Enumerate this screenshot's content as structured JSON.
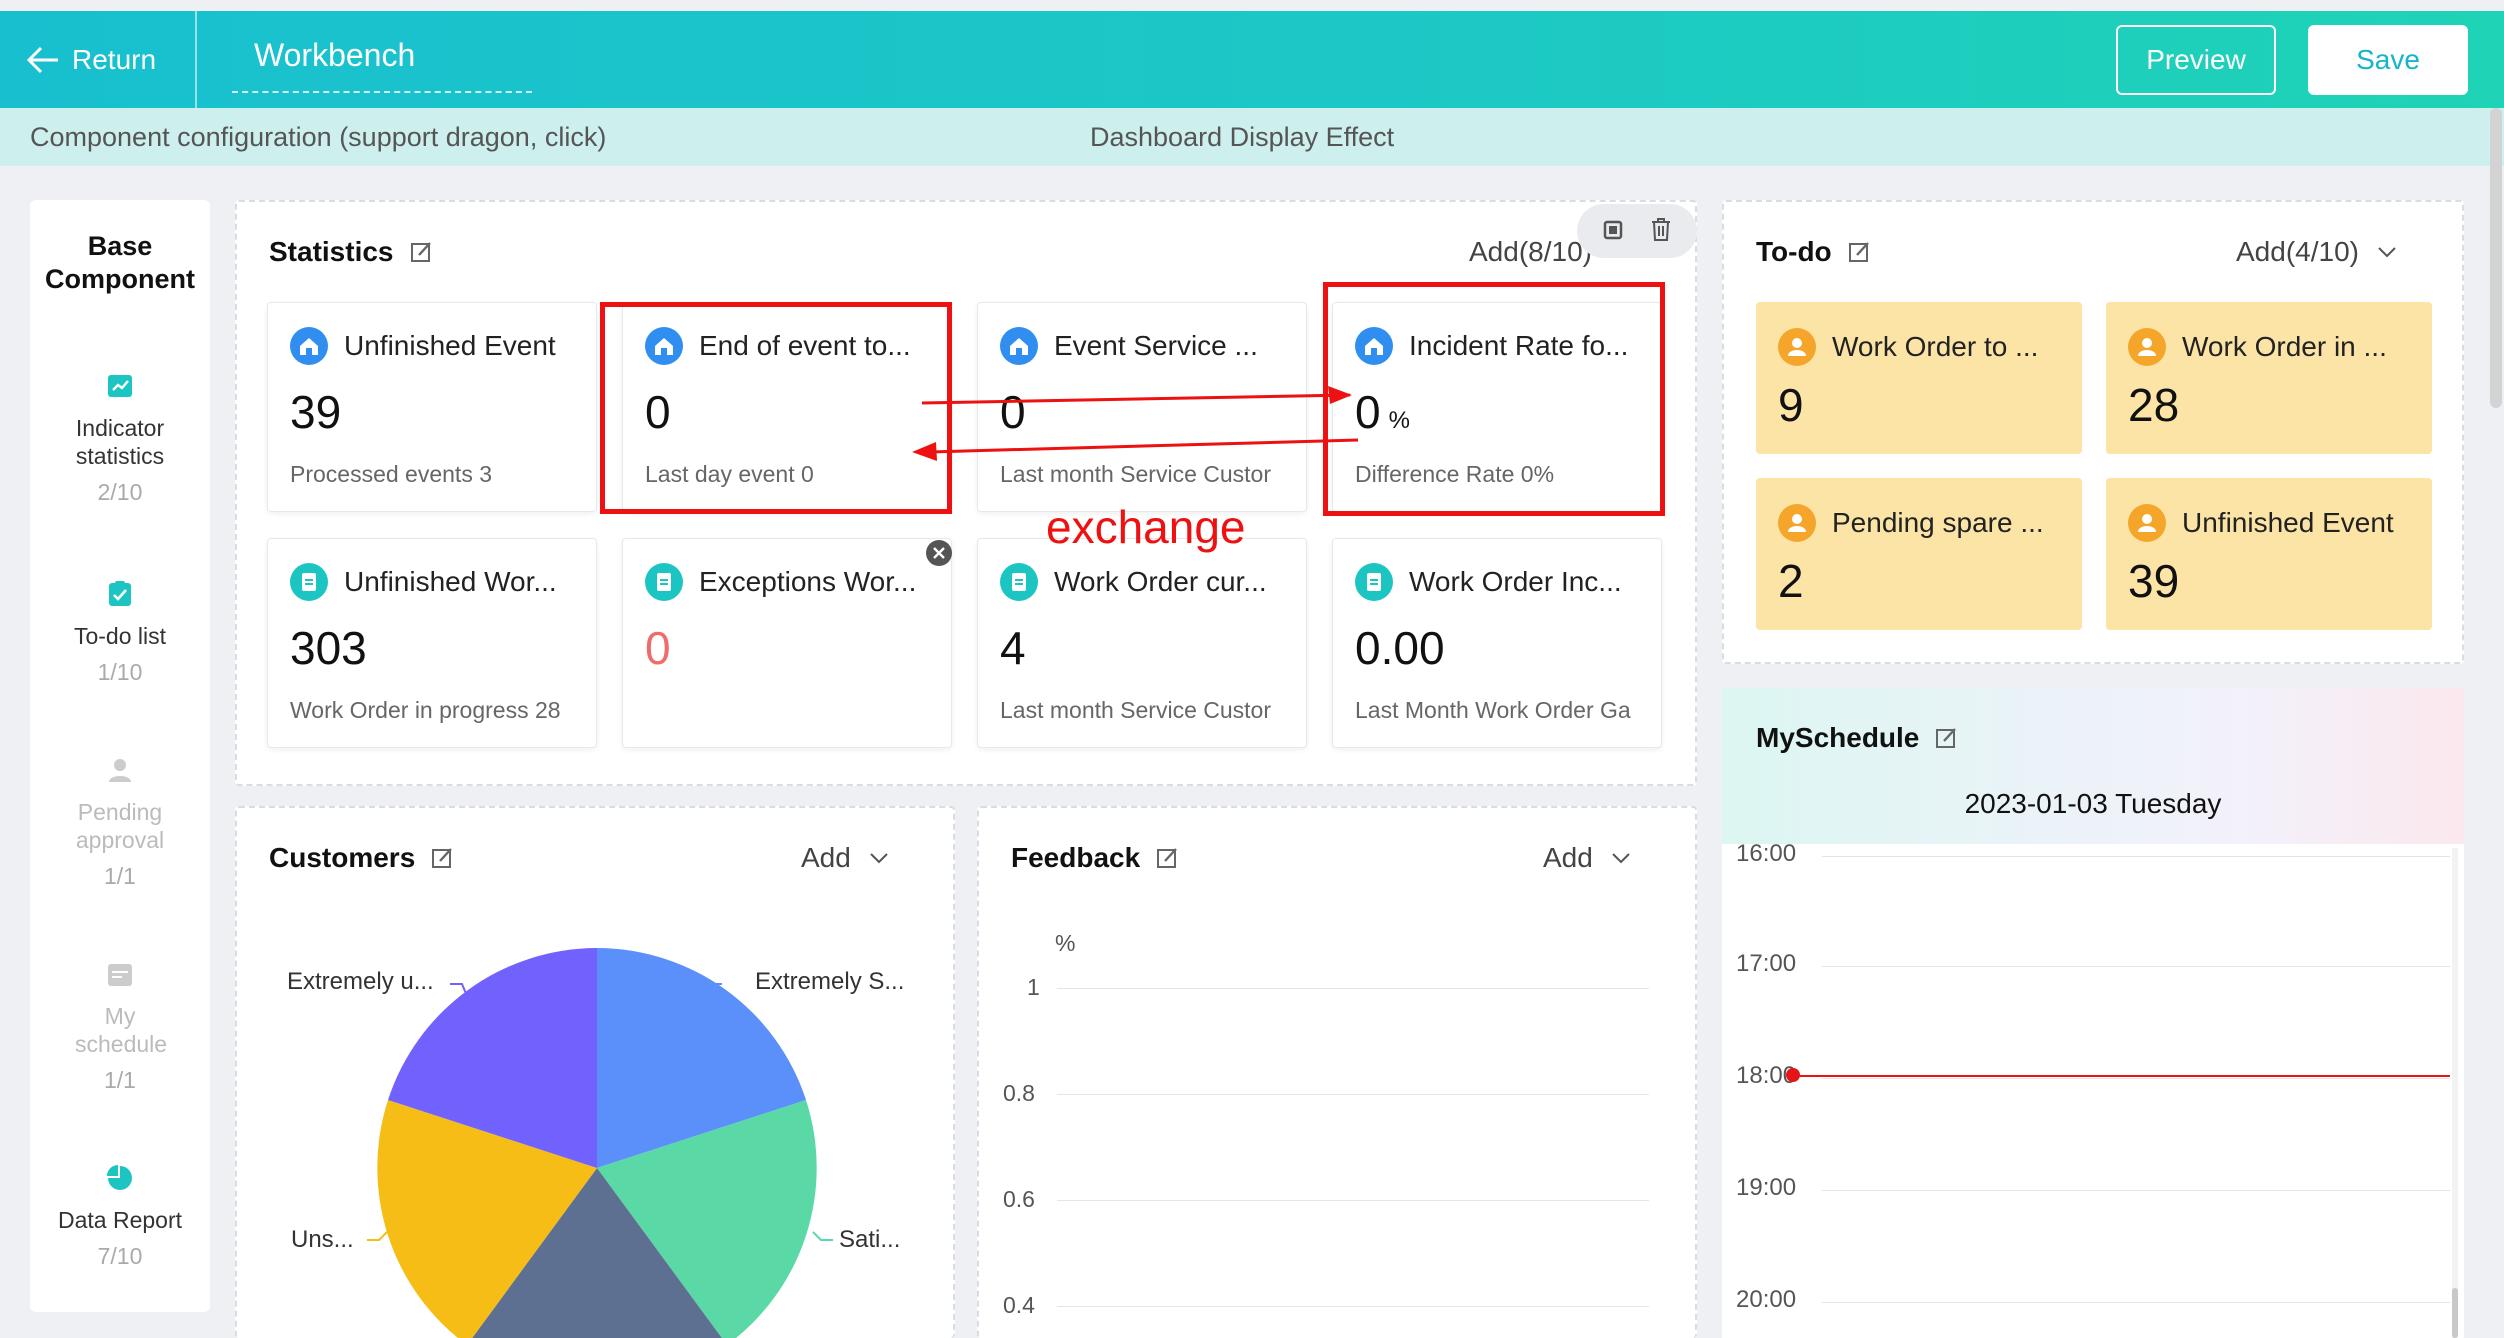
{
  "header": {
    "return_label": "Return",
    "title": "Workbench",
    "preview_label": "Preview",
    "save_label": "Save"
  },
  "subbar": {
    "left_text": "Component configuration (support dragon, click)",
    "right_text": "Dashboard Display Effect"
  },
  "sidebar": {
    "heading": "Base Component",
    "items": [
      {
        "label": "Indicator statistics",
        "count": "2/10",
        "enabled": true,
        "icon": "chart-line-icon"
      },
      {
        "label": "To-do list",
        "count": "1/10",
        "enabled": true,
        "icon": "checklist-icon"
      },
      {
        "label": "Pending approval",
        "count": "1/1",
        "enabled": false,
        "icon": "user-icon"
      },
      {
        "label": "My schedule",
        "count": "1/1",
        "enabled": false,
        "icon": "calendar-icon"
      },
      {
        "label": "Data Report",
        "count": "7/10",
        "enabled": true,
        "icon": "pie-chart-icon"
      }
    ]
  },
  "statistics": {
    "title": "Statistics",
    "add_label": "Add(8/10)",
    "cards": [
      {
        "title": "Unfinished Event",
        "value": "39",
        "unit": "",
        "sub": "Processed events  3",
        "icon": "home-icon"
      },
      {
        "title": "End of event to...",
        "value": "0",
        "unit": "",
        "sub": "Last day event  0",
        "icon": "home-icon"
      },
      {
        "title": "Event Service ...",
        "value": "0",
        "unit": "",
        "sub": "Last month Service Custor",
        "icon": "home-icon"
      },
      {
        "title": "Incident Rate fo...",
        "value": "0",
        "unit": "%",
        "sub": "Difference Rate  0%",
        "icon": "home-icon"
      },
      {
        "title": "Unfinished Wor...",
        "value": "303",
        "unit": "",
        "sub": "Work Order in progress  28",
        "icon": "clipboard-icon"
      },
      {
        "title": "Exceptions Wor...",
        "value": "0",
        "unit": "",
        "sub": "",
        "icon": "clipboard-icon"
      },
      {
        "title": "Work Order cur...",
        "value": "4",
        "unit": "",
        "sub": "Last month Service Custor",
        "icon": "clipboard-icon"
      },
      {
        "title": "Work Order Inc...",
        "value": "0.00",
        "unit": "",
        "sub": "Last Month Work Order Ga",
        "icon": "clipboard-icon"
      }
    ],
    "annotation": "exchange"
  },
  "todo": {
    "title": "To-do",
    "add_label": "Add(4/10)",
    "items": [
      {
        "title": "Work Order to ...",
        "value": "9"
      },
      {
        "title": "Work Order in ...",
        "value": "28"
      },
      {
        "title": "Pending spare ...",
        "value": "2"
      },
      {
        "title": "Unfinished Event",
        "value": "39"
      }
    ]
  },
  "schedule": {
    "title": "MySchedule",
    "date": "2023-01-03 Tuesday",
    "hours": [
      "16:00",
      "17:00",
      "18:00",
      "19:00",
      "20:00"
    ],
    "now_line_color": "#e61414"
  },
  "customers": {
    "title": "Customers",
    "add_label": "Add",
    "labels": [
      "Extremely u...",
      "Extremely S...",
      "Uns...",
      "Sati..."
    ]
  },
  "feedback": {
    "title": "Feedback",
    "add_label": "Add",
    "chart_data": {
      "type": "line",
      "ylabel": "%",
      "yticks": [
        "1",
        "0.8",
        "0.6",
        "0.4"
      ],
      "series": []
    }
  },
  "colors": {
    "accent": "#1cc6c8",
    "todo_bg": "#fbe4a6",
    "stat_icon_blue": "#2f8ef0",
    "stat_icon_teal": "#1cc5c2",
    "todo_icon": "#f4a52a",
    "annotation_red": "#ee1111"
  }
}
